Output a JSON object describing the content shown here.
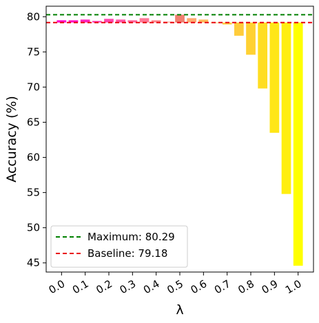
{
  "chart_data": {
    "type": "bar",
    "xlabel": "λ",
    "ylabel": "Accuracy (%)",
    "ylim": [
      43.7,
      81.5
    ],
    "yticks": [
      45,
      50,
      55,
      60,
      65,
      70,
      75,
      80
    ],
    "xticks": [
      "0.0",
      "0.1",
      "0.2",
      "0.3",
      "0.4",
      "0.5",
      "0.6",
      "0.7",
      "0.8",
      "0.9",
      "1.0"
    ],
    "bar_base": 79.18,
    "x": [
      0.0,
      0.05,
      0.1,
      0.15,
      0.2,
      0.25,
      0.3,
      0.35,
      0.4,
      0.45,
      0.5,
      0.55,
      0.6,
      0.65,
      0.7,
      0.75,
      0.8,
      0.85,
      0.9,
      0.95,
      1.0
    ],
    "values": [
      79.5,
      79.5,
      79.6,
      79.4,
      79.7,
      79.6,
      79.5,
      79.8,
      79.5,
      79.3,
      80.29,
      79.8,
      79.6,
      79.1,
      78.9,
      77.3,
      74.6,
      69.8,
      63.5,
      54.8,
      44.6
    ],
    "colors": [
      "#ff00cc",
      "#ff11c4",
      "#ff22bd",
      "#ff33b5",
      "#ff44ad",
      "#ff55a6",
      "#ff669e",
      "#ff7796",
      "#ff888f",
      "#ff9987",
      "#f08070",
      "#ffaa70",
      "#ffba5c",
      "#ffc64e",
      "#ffcc44",
      "#ffcc3b",
      "#ffd133",
      "#ffdd22",
      "#ffe617",
      "#ffee10",
      "#ffff00"
    ],
    "reference_lines": [
      {
        "label": "Maximum: 80.29",
        "value": 80.29,
        "color": "#008000"
      },
      {
        "label": "Baseline: 79.18",
        "value": 79.18,
        "color": "#e8000b"
      }
    ],
    "legend_position": "lower-left",
    "grid": false
  }
}
